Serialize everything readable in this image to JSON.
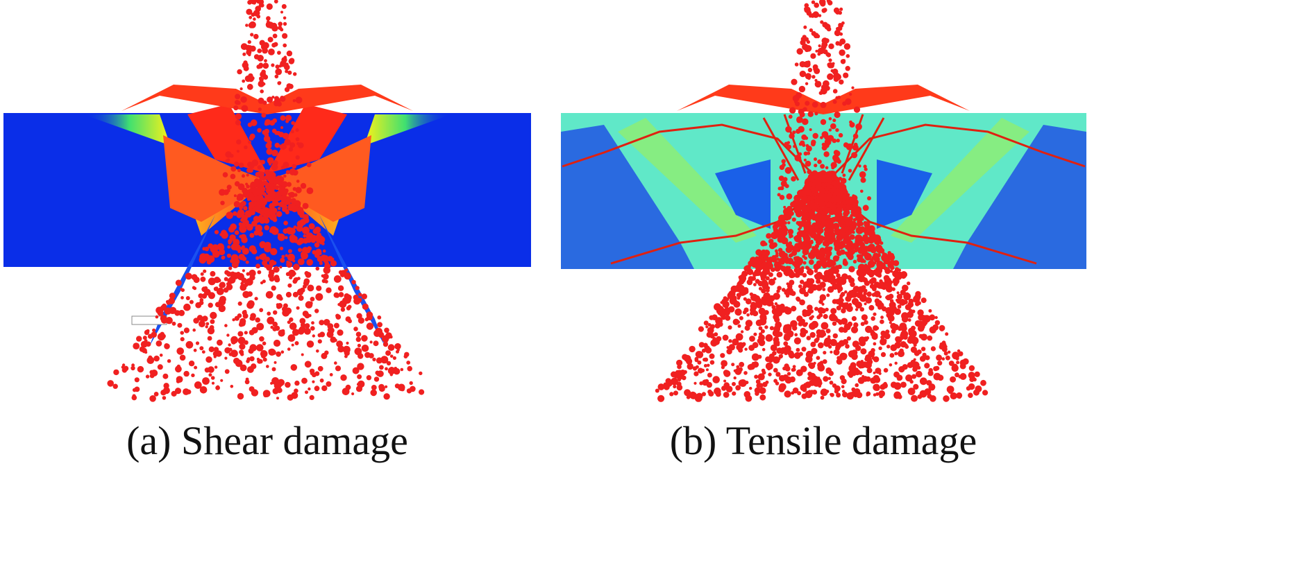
{
  "figure": {
    "panels": [
      {
        "caption": "(a) Shear damage"
      },
      {
        "caption": "(b) Tensile damage"
      }
    ]
  }
}
